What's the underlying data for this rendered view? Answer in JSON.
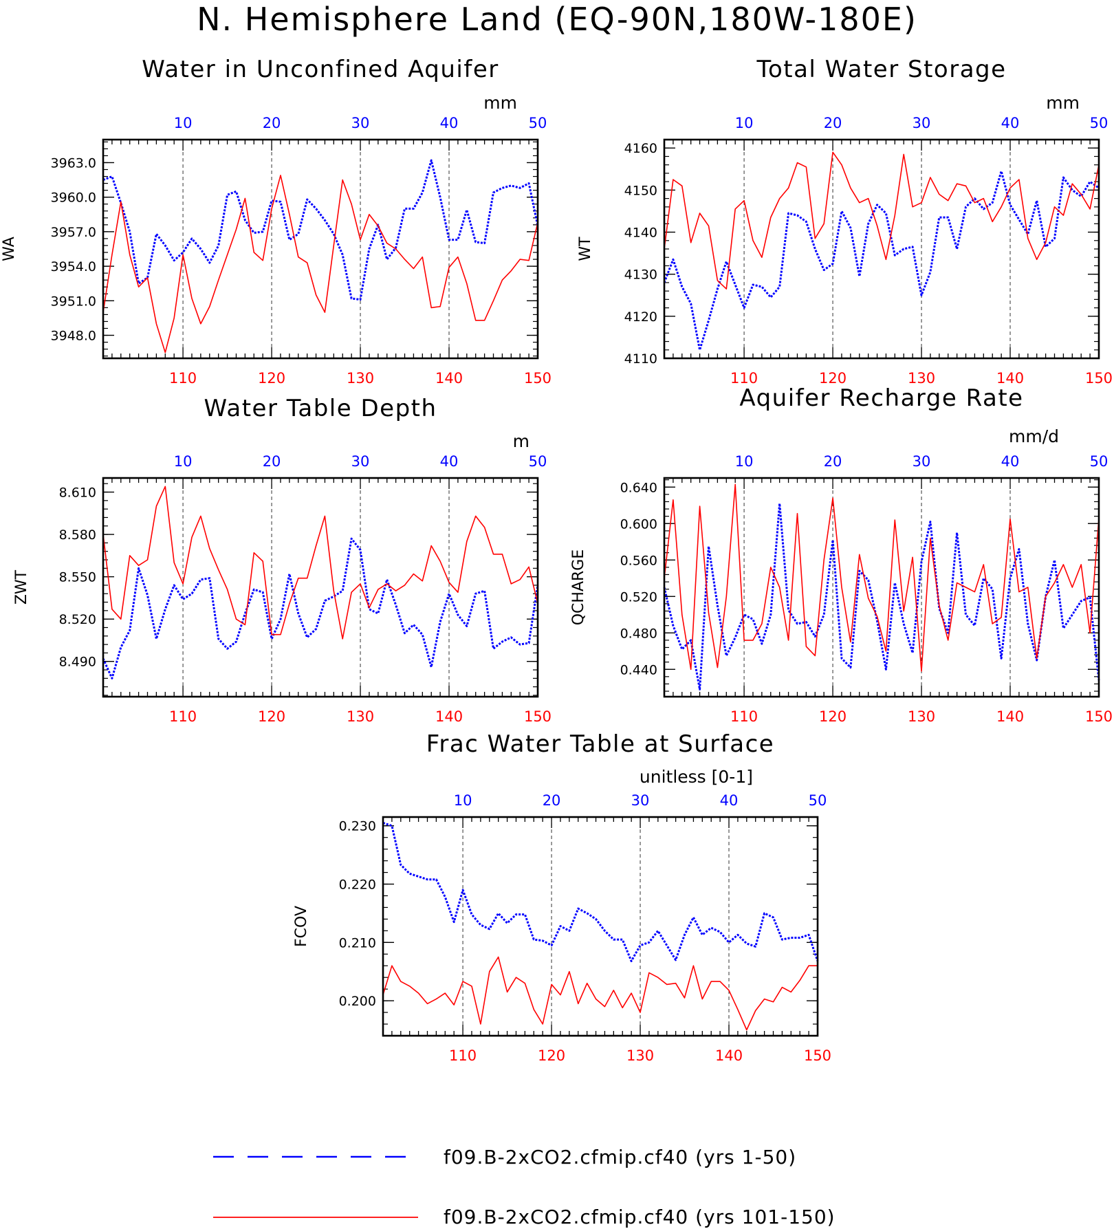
{
  "title": "N. Hemisphere Land (EQ-90N,180W-180E)",
  "colors": {
    "series_a": "#0000ff",
    "series_b": "#ff0000"
  },
  "legend": {
    "items": [
      {
        "label": "f09.B-2xCO2.cfmip.cf40 (yrs 1-50)",
        "style": "dashed",
        "color": "#0000ff"
      },
      {
        "label": "f09.B-2xCO2.cfmip.cf40 (yrs 101-150)",
        "style": "solid",
        "color": "#ff0000"
      }
    ]
  },
  "chart_data": [
    {
      "type": "line",
      "title": "Water in Unconfined Aquifer",
      "units": "mm",
      "ylabel": "WA",
      "ylim": [
        3946,
        3965
      ],
      "yticks": [
        "3948.0",
        "3951.0",
        "3954.0",
        "3957.0",
        "3960.0",
        "3963.0"
      ],
      "xlim_bottom": [
        101,
        150
      ],
      "xlim_top": [
        1,
        50
      ],
      "xticks_bottom": [
        "110",
        "120",
        "130",
        "140",
        "150"
      ],
      "xticks_top": [
        "10",
        "20",
        "30",
        "40",
        "50"
      ],
      "grid": "vertical-dashed",
      "series": [
        {
          "axis": "top",
          "x_start": 1,
          "values": [
            3961.5,
            3961.8,
            3959.5,
            3957.0,
            3952.5,
            3953.0,
            3956.8,
            3955.8,
            3954.5,
            3955.2,
            3956.4,
            3955.5,
            3954.3,
            3955.8,
            3960.2,
            3960.5,
            3958.0,
            3956.9,
            3957.0,
            3959.7,
            3959.6,
            3956.3,
            3956.8,
            3959.8,
            3959.0,
            3958.0,
            3956.8,
            3955.0,
            3951.2,
            3951.1,
            3955.5,
            3957.6,
            3954.6,
            3955.6,
            3959.0,
            3959.0,
            3960.4,
            3963.2,
            3960.0,
            3956.3,
            3956.3,
            3958.9,
            3956.1,
            3956.0,
            3960.4,
            3960.8,
            3961.0,
            3960.8,
            3961.2,
            3957.5
          ]
        },
        {
          "axis": "bottom",
          "x_start": 101,
          "values": [
            3950.0,
            3955.0,
            3959.6,
            3955.0,
            3952.2,
            3953.0,
            3949.0,
            3946.5,
            3949.5,
            3955.0,
            3951.2,
            3949.0,
            3950.5,
            3952.8,
            3955.0,
            3957.2,
            3959.9,
            3955.2,
            3954.5,
            3959.0,
            3961.9,
            3958.5,
            3954.8,
            3954.3,
            3951.5,
            3950.0,
            3955.8,
            3961.5,
            3959.4,
            3956.3,
            3958.5,
            3957.5,
            3956.0,
            3955.5,
            3954.6,
            3953.8,
            3954.8,
            3950.4,
            3950.5,
            3953.9,
            3954.8,
            3952.5,
            3949.3,
            3949.3,
            3951.0,
            3952.8,
            3953.6,
            3954.6,
            3954.5,
            3957.8
          ]
        }
      ]
    },
    {
      "type": "line",
      "title": "Total Water Storage",
      "units": "mm",
      "ylabel": "WT",
      "ylim": [
        4110,
        4162
      ],
      "yticks": [
        "4110",
        "4120",
        "4130",
        "4140",
        "4150",
        "4160"
      ],
      "xlim_bottom": [
        101,
        150
      ],
      "xlim_top": [
        1,
        50
      ],
      "xticks_bottom": [
        "110",
        "120",
        "130",
        "140",
        "150"
      ],
      "xticks_top": [
        "10",
        "20",
        "30",
        "40",
        "50"
      ],
      "grid": "vertical-dashed",
      "series": [
        {
          "axis": "top",
          "x_start": 1,
          "values": [
            4128.0,
            4133.5,
            4127.0,
            4123.0,
            4112.0,
            4119.0,
            4126.5,
            4133.0,
            4127.5,
            4122.0,
            4127.5,
            4127.0,
            4124.5,
            4127.0,
            4144.5,
            4144.0,
            4142.5,
            4136.0,
            4131.0,
            4132.5,
            4145.0,
            4141.0,
            4129.5,
            4142.0,
            4146.5,
            4144.5,
            4134.5,
            4136.0,
            4136.5,
            4125.0,
            4130.5,
            4143.5,
            4143.5,
            4136.0,
            4146.0,
            4148.0,
            4145.5,
            4147.0,
            4154.5,
            4146.5,
            4143.0,
            4139.5,
            4147.5,
            4136.5,
            4138.5,
            4153.0,
            4150.0,
            4148.5,
            4152.0,
            4150.5
          ]
        },
        {
          "axis": "bottom",
          "x_start": 101,
          "values": [
            4136.0,
            4152.5,
            4151.0,
            4137.5,
            4144.5,
            4141.5,
            4128.5,
            4126.5,
            4145.5,
            4147.5,
            4138.0,
            4134.0,
            4143.5,
            4148.0,
            4150.5,
            4156.5,
            4155.5,
            4138.5,
            4142.0,
            4159.0,
            4156.0,
            4150.5,
            4147.0,
            4148.0,
            4141.5,
            4133.5,
            4144.0,
            4158.5,
            4146.0,
            4147.0,
            4153.0,
            4149.0,
            4147.5,
            4151.5,
            4151.0,
            4147.0,
            4148.0,
            4142.5,
            4146.0,
            4150.5,
            4152.5,
            4138.5,
            4133.5,
            4137.5,
            4146.0,
            4144.0,
            4151.5,
            4149.0,
            4145.5,
            4156.0
          ]
        }
      ]
    },
    {
      "type": "line",
      "title": "Water Table Depth",
      "units": "m",
      "ylabel": "ZWT",
      "ylim": [
        8.465,
        8.62
      ],
      "yticks": [
        "8.490",
        "8.520",
        "8.550",
        "8.580",
        "8.610"
      ],
      "xlim_bottom": [
        101,
        150
      ],
      "xlim_top": [
        1,
        50
      ],
      "xticks_bottom": [
        "110",
        "120",
        "130",
        "140",
        "150"
      ],
      "xticks_top": [
        "10",
        "20",
        "30",
        "40",
        "50"
      ],
      "grid": "vertical-dashed",
      "series": [
        {
          "axis": "top",
          "x_start": 1,
          "values": [
            8.492,
            8.478,
            8.5,
            8.512,
            8.556,
            8.537,
            8.506,
            8.527,
            8.544,
            8.534,
            8.538,
            8.548,
            8.549,
            8.506,
            8.499,
            8.504,
            8.524,
            8.541,
            8.539,
            8.506,
            8.52,
            8.552,
            8.524,
            8.507,
            8.513,
            8.533,
            8.536,
            8.54,
            8.577,
            8.569,
            8.527,
            8.524,
            8.548,
            8.53,
            8.51,
            8.516,
            8.509,
            8.486,
            8.518,
            8.538,
            8.523,
            8.515,
            8.538,
            8.54,
            8.499,
            8.504,
            8.507,
            8.502,
            8.503,
            8.544
          ]
        },
        {
          "axis": "bottom",
          "x_start": 101,
          "values": [
            8.58,
            8.527,
            8.52,
            8.565,
            8.558,
            8.562,
            8.6,
            8.614,
            8.56,
            8.545,
            8.578,
            8.593,
            8.57,
            8.555,
            8.541,
            8.52,
            8.516,
            8.567,
            8.561,
            8.509,
            8.509,
            8.531,
            8.549,
            8.549,
            8.572,
            8.593,
            8.54,
            8.506,
            8.539,
            8.545,
            8.528,
            8.541,
            8.545,
            8.54,
            8.544,
            8.552,
            8.547,
            8.572,
            8.561,
            8.546,
            8.539,
            8.575,
            8.593,
            8.585,
            8.566,
            8.566,
            8.545,
            8.548,
            8.557,
            8.531
          ]
        }
      ]
    },
    {
      "type": "line",
      "title": "Aquifer Recharge Rate",
      "units": "mm/d",
      "ylabel": "QCHARGE",
      "ylim": [
        0.41,
        0.65
      ],
      "yticks": [
        "0.440",
        "0.480",
        "0.520",
        "0.560",
        "0.600",
        "0.640"
      ],
      "xlim_bottom": [
        101,
        150
      ],
      "xlim_top": [
        1,
        50
      ],
      "xticks_bottom": [
        "110",
        "120",
        "130",
        "140",
        "150"
      ],
      "xticks_top": [
        "10",
        "20",
        "30",
        "40",
        "50"
      ],
      "grid": "vertical-dashed",
      "series": [
        {
          "axis": "top",
          "x_start": 1,
          "values": [
            0.53,
            0.488,
            0.462,
            0.472,
            0.418,
            0.575,
            0.51,
            0.455,
            0.475,
            0.5,
            0.495,
            0.468,
            0.5,
            0.622,
            0.505,
            0.49,
            0.492,
            0.476,
            0.5,
            0.582,
            0.452,
            0.442,
            0.548,
            0.538,
            0.493,
            0.44,
            0.535,
            0.49,
            0.458,
            0.558,
            0.602,
            0.507,
            0.48,
            0.59,
            0.5,
            0.488,
            0.54,
            0.528,
            0.452,
            0.54,
            0.572,
            0.49,
            0.45,
            0.52,
            0.56,
            0.485,
            0.5,
            0.515,
            0.519,
            0.428
          ]
        },
        {
          "axis": "bottom",
          "x_start": 101,
          "values": [
            0.54,
            0.626,
            0.5,
            0.44,
            0.619,
            0.502,
            0.442,
            0.52,
            0.643,
            0.472,
            0.472,
            0.49,
            0.552,
            0.53,
            0.472,
            0.611,
            0.465,
            0.455,
            0.56,
            0.628,
            0.53,
            0.47,
            0.566,
            0.518,
            0.498,
            0.46,
            0.604,
            0.504,
            0.563,
            0.438,
            0.584,
            0.51,
            0.472,
            0.535,
            0.53,
            0.525,
            0.555,
            0.49,
            0.497,
            0.605,
            0.525,
            0.53,
            0.452,
            0.52,
            0.535,
            0.555,
            0.53,
            0.555,
            0.48,
            0.606
          ]
        }
      ]
    },
    {
      "type": "line",
      "title": "Frac Water Table at Surface",
      "units": "unitless [0-1]",
      "ylabel": "FCOV",
      "ylim": [
        0.194,
        0.2315
      ],
      "yticks": [
        "0.200",
        "0.210",
        "0.220",
        "0.230"
      ],
      "xlim_bottom": [
        101,
        150
      ],
      "xlim_top": [
        1,
        50
      ],
      "xticks_bottom": [
        "110",
        "120",
        "130",
        "140",
        "150"
      ],
      "xticks_top": [
        "10",
        "20",
        "30",
        "40",
        "50"
      ],
      "grid": "vertical-dashed",
      "series": [
        {
          "axis": "top",
          "x_start": 1,
          "values": [
            0.2305,
            0.23,
            0.2233,
            0.2218,
            0.2213,
            0.2208,
            0.2208,
            0.2178,
            0.2135,
            0.219,
            0.2148,
            0.213,
            0.2123,
            0.215,
            0.2133,
            0.2148,
            0.2148,
            0.2105,
            0.2103,
            0.2095,
            0.2128,
            0.212,
            0.2158,
            0.215,
            0.214,
            0.212,
            0.2105,
            0.2105,
            0.2068,
            0.2095,
            0.21,
            0.212,
            0.2095,
            0.207,
            0.2113,
            0.2143,
            0.2113,
            0.2125,
            0.2118,
            0.21,
            0.2113,
            0.2098,
            0.2093,
            0.215,
            0.2143,
            0.2105,
            0.2108,
            0.2108,
            0.2113,
            0.2068
          ]
        },
        {
          "axis": "bottom",
          "x_start": 101,
          "values": [
            0.201,
            0.206,
            0.2033,
            0.2025,
            0.2013,
            0.1995,
            0.2003,
            0.2013,
            0.1993,
            0.2033,
            0.2025,
            0.196,
            0.205,
            0.2075,
            0.2015,
            0.204,
            0.203,
            0.1985,
            0.196,
            0.2028,
            0.201,
            0.205,
            0.1995,
            0.203,
            0.2003,
            0.199,
            0.2018,
            0.1988,
            0.2013,
            0.198,
            0.2048,
            0.204,
            0.2028,
            0.203,
            0.2005,
            0.206,
            0.2003,
            0.2033,
            0.2033,
            0.2018,
            0.1985,
            0.195,
            0.1983,
            0.2003,
            0.1998,
            0.2023,
            0.2015,
            0.2035,
            0.206,
            0.206
          ]
        }
      ]
    }
  ]
}
